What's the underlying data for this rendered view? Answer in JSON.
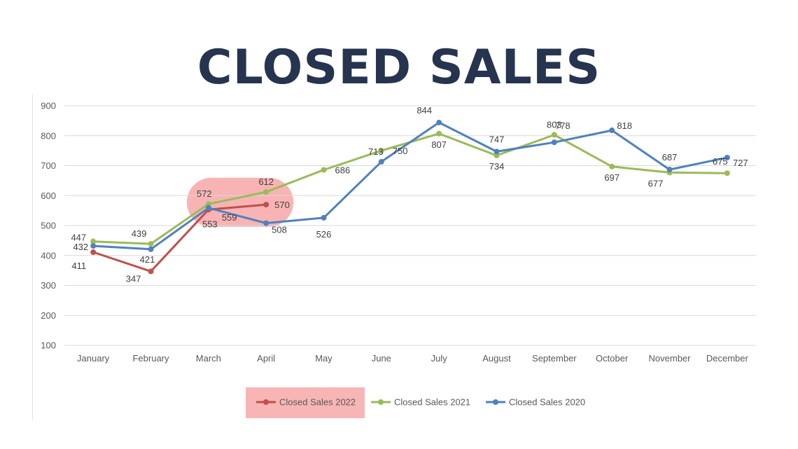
{
  "title": "CLOSED SALES",
  "chart_data": {
    "type": "line",
    "categories": [
      "January",
      "February",
      "March",
      "April",
      "May",
      "June",
      "July",
      "August",
      "September",
      "October",
      "November",
      "December"
    ],
    "ylim": [
      100,
      900
    ],
    "yticks": [
      100,
      200,
      300,
      400,
      500,
      600,
      700,
      800,
      900
    ],
    "grid": true,
    "legend_position": "bottom",
    "series": [
      {
        "name": "Closed Sales 2022",
        "color": "#c0504d",
        "values": [
          411,
          347,
          553,
          570,
          null,
          null,
          null,
          null,
          null,
          null,
          null,
          null
        ]
      },
      {
        "name": "Closed Sales 2021",
        "color": "#9bbb59",
        "values": [
          447,
          439,
          572,
          612,
          686,
          750,
          807,
          734,
          803,
          697,
          677,
          675
        ]
      },
      {
        "name": "Closed Sales 2020",
        "color": "#4f81bd",
        "values": [
          432,
          421,
          559,
          508,
          526,
          713,
          844,
          747,
          778,
          818,
          687,
          727
        ]
      }
    ],
    "highlight": {
      "series": "Closed Sales 2022",
      "color": "#f7a8a8"
    }
  }
}
